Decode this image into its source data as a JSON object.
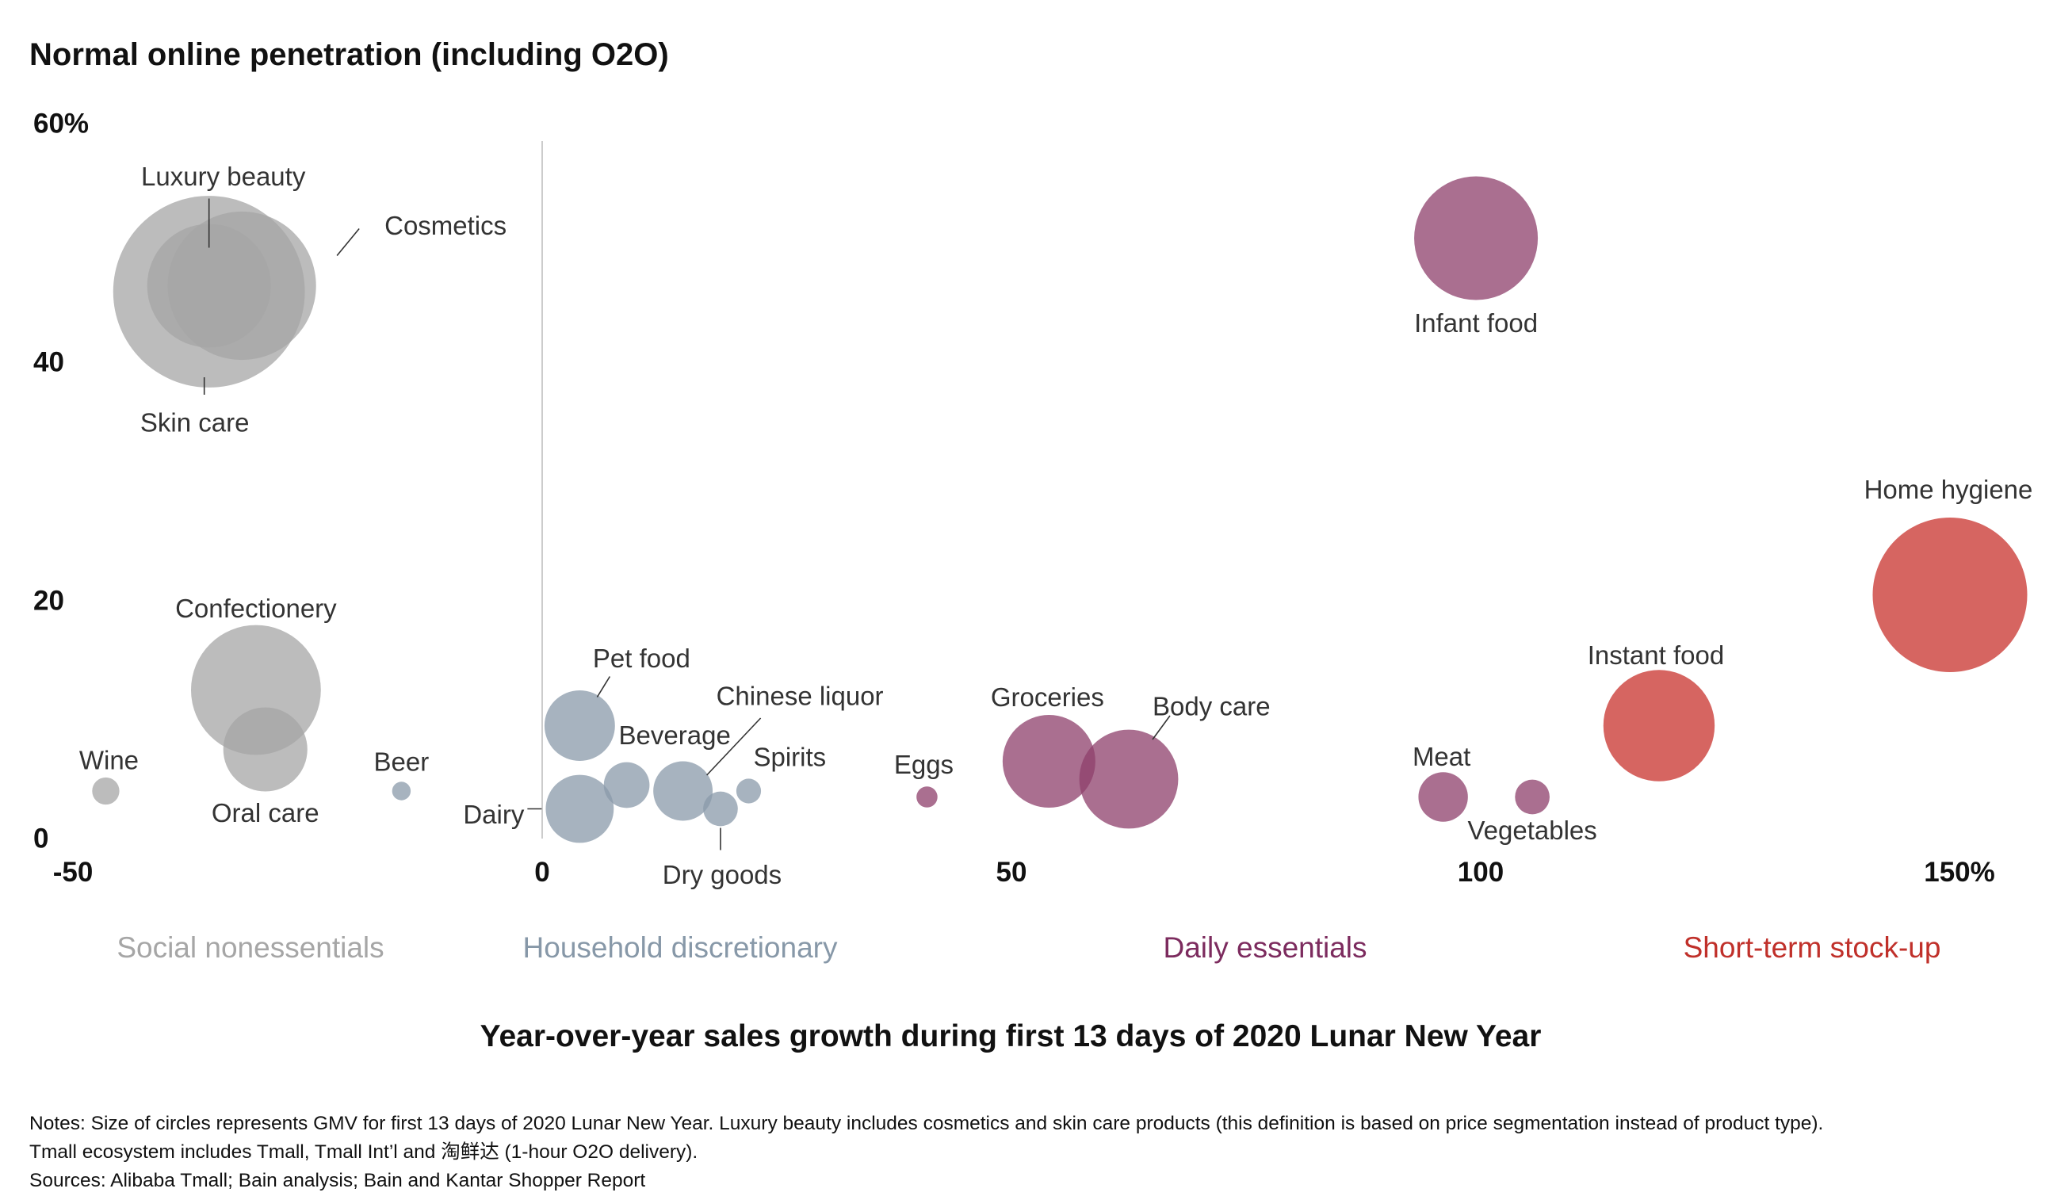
{
  "chart_data": {
    "type": "scatter",
    "title": "Normal online penetration (including O2O)",
    "xlabel": "Year-over-year sales growth during first 13 days of 2020 Lunar New Year",
    "ylabel": "",
    "xlim": [
      -50,
      150
    ],
    "ylim": [
      0,
      60
    ],
    "grid": false,
    "x_ticks": [
      {
        "value": -50,
        "label": "-50"
      },
      {
        "value": 0,
        "label": "0"
      },
      {
        "value": 50,
        "label": "50"
      },
      {
        "value": 100,
        "label": "100"
      },
      {
        "value": 150,
        "label": "150%"
      }
    ],
    "y_ticks": [
      {
        "value": 0,
        "label": "0"
      },
      {
        "value": 20,
        "label": "20"
      },
      {
        "value": 40,
        "label": "40"
      },
      {
        "value": 60,
        "label": "60%"
      }
    ],
    "groups": [
      {
        "name": "Social nonessentials",
        "color": "#a6a6a6",
        "label_color": "#a6a6a6"
      },
      {
        "name": "Household discretionary",
        "color": "#8a9aa9",
        "label_color": "#8798a8"
      },
      {
        "name": "Daily essentials",
        "color": "#8e3f6b",
        "label_color": "#7c2b5e"
      },
      {
        "name": "Short-term stock-up",
        "color": "#c8312c",
        "label_color": "#c0302a"
      }
    ],
    "points": [
      {
        "name": "Luxury beauty",
        "group": "Social nonessentials",
        "x": -35.5,
        "y": 46.5,
        "size": 1.0
      },
      {
        "name": "Cosmetics",
        "group": "Social nonessentials",
        "x": -32,
        "y": 46.5,
        "size": 1.2
      },
      {
        "name": "Skin care",
        "group": "Social nonessentials",
        "x": -35.5,
        "y": 46.0,
        "size": 1.55
      },
      {
        "name": "Confectionery",
        "group": "Social nonessentials",
        "x": -30.5,
        "y": 12.5,
        "size": 1.05
      },
      {
        "name": "Oral care",
        "group": "Social nonessentials",
        "x": -29.5,
        "y": 7.5,
        "size": 0.68
      },
      {
        "name": "Wine",
        "group": "Social nonessentials",
        "x": -46.5,
        "y": 4.0,
        "size": 0.22
      },
      {
        "name": "Beer",
        "group": "Household discretionary",
        "x": -15,
        "y": 4.0,
        "size": 0.15
      },
      {
        "name": "Pet food",
        "group": "Household discretionary",
        "x": 4,
        "y": 9.5,
        "size": 0.57
      },
      {
        "name": "Dairy",
        "group": "Household discretionary",
        "x": 4,
        "y": 2.5,
        "size": 0.55
      },
      {
        "name": "Beverage",
        "group": "Household discretionary",
        "x": 9,
        "y": 4.5,
        "size": 0.37
      },
      {
        "name": "Chinese liquor",
        "group": "Household discretionary",
        "x": 15,
        "y": 4.0,
        "size": 0.48
      },
      {
        "name": "Dry goods",
        "group": "Household discretionary",
        "x": 19,
        "y": 2.5,
        "size": 0.28
      },
      {
        "name": "Spirits",
        "group": "Household discretionary",
        "x": 22,
        "y": 4.0,
        "size": 0.2
      },
      {
        "name": "Eggs",
        "group": "Daily essentials",
        "x": 41,
        "y": 3.5,
        "size": 0.17
      },
      {
        "name": "Groceries",
        "group": "Daily essentials",
        "x": 54,
        "y": 6.5,
        "size": 0.75
      },
      {
        "name": "Body care",
        "group": "Daily essentials",
        "x": 62.5,
        "y": 5.0,
        "size": 0.8
      },
      {
        "name": "Infant food",
        "group": "Daily essentials",
        "x": 99.5,
        "y": 50.5,
        "size": 1.0
      },
      {
        "name": "Meat",
        "group": "Daily essentials",
        "x": 96,
        "y": 3.5,
        "size": 0.4
      },
      {
        "name": "Vegetables",
        "group": "Daily essentials",
        "x": 105.5,
        "y": 3.5,
        "size": 0.28
      },
      {
        "name": "Instant food",
        "group": "Short-term stock-up",
        "x": 119,
        "y": 9.5,
        "size": 0.9
      },
      {
        "name": "Home hygiene",
        "group": "Short-term stock-up",
        "x": 150,
        "y": 20.5,
        "size": 1.25
      }
    ]
  },
  "notes": [
    "Notes: Size of circles represents GMV for first 13 days of 2020 Lunar New Year. Luxury beauty includes cosmetics and skin care products (this definition is based on price segmentation instead of product type).",
    "Tmall ecosystem includes Tmall, Tmall Int’l and 淘鲜达 (1-hour O2O delivery).",
    "Sources: Alibaba Tmall; Bain analysis; Bain and Kantar Shopper Report"
  ]
}
